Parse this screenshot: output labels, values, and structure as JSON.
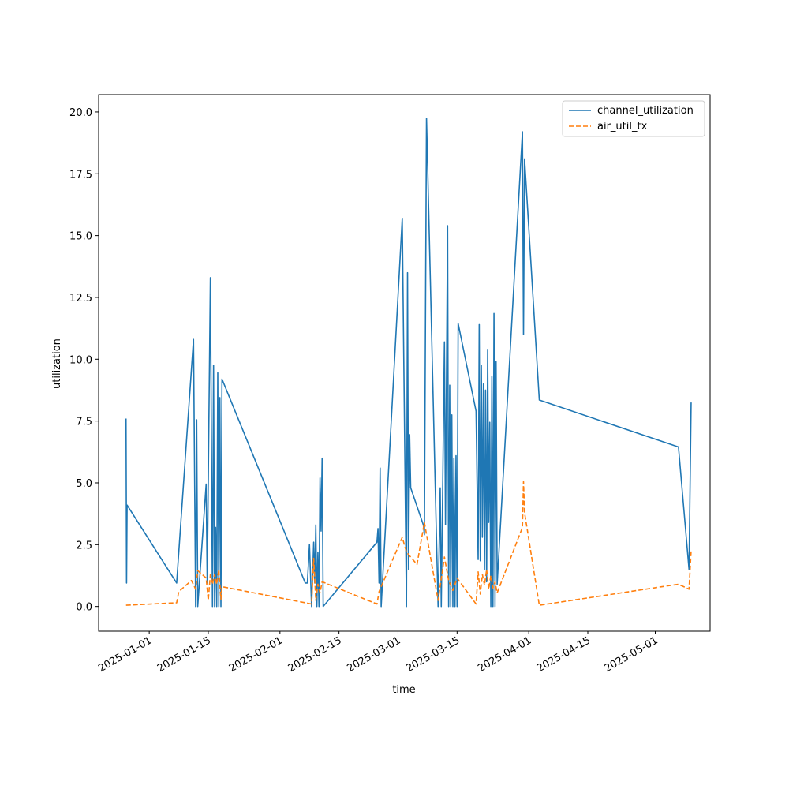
{
  "chart_data": {
    "type": "line",
    "title": "",
    "xlabel": "time",
    "ylabel": "utilization",
    "xlim": [
      "2024-12-20",
      "2025-05-14"
    ],
    "ylim": [
      -1.0,
      20.7
    ],
    "grid": false,
    "legend_position": "top-right",
    "x_ticks": [
      "2025-01-01",
      "2025-01-15",
      "2025-02-01",
      "2025-02-15",
      "2025-03-01",
      "2025-03-15",
      "2025-04-01",
      "2025-04-15",
      "2025-05-01"
    ],
    "y_ticks": [
      0.0,
      2.5,
      5.0,
      7.5,
      10.0,
      12.5,
      15.0,
      17.5,
      20.0
    ],
    "y_tick_labels": [
      "0.0",
      "2.5",
      "5.0",
      "7.5",
      "10.0",
      "12.5",
      "15.0",
      "17.5",
      "20.0"
    ],
    "series": [
      {
        "name": "channel_utilization",
        "color": "#1f77b4",
        "style": "solid",
        "points": [
          [
            "2024-12-26 12:00",
            7.6
          ],
          [
            "2024-12-26 15:00",
            0.95
          ],
          [
            "2024-12-26 18:00",
            4.1
          ],
          [
            "2025-01-07 12:00",
            0.95
          ],
          [
            "2025-01-11 12:00",
            10.8
          ],
          [
            "2025-01-12 00:00",
            0.0
          ],
          [
            "2025-01-12 06:00",
            7.55
          ],
          [
            "2025-01-12 12:00",
            0.0
          ],
          [
            "2025-01-14 12:00",
            4.95
          ],
          [
            "2025-01-14 18:00",
            0.95
          ],
          [
            "2025-01-15 12:00",
            13.3
          ],
          [
            "2025-01-16 00:00",
            0.0
          ],
          [
            "2025-01-16 06:00",
            9.75
          ],
          [
            "2025-01-16 12:00",
            0.0
          ],
          [
            "2025-01-16 18:00",
            3.2
          ],
          [
            "2025-01-17 00:00",
            0.0
          ],
          [
            "2025-01-17 06:00",
            9.45
          ],
          [
            "2025-01-17 12:00",
            0.0
          ],
          [
            "2025-01-17 18:00",
            8.45
          ],
          [
            "2025-01-18 00:00",
            0.0
          ],
          [
            "2025-01-18 06:00",
            9.2
          ],
          [
            "2025-02-07 00:00",
            0.95
          ],
          [
            "2025-02-07 12:00",
            0.95
          ],
          [
            "2025-02-08 00:00",
            2.5
          ],
          [
            "2025-02-08 12:00",
            0.0
          ],
          [
            "2025-02-09 00:00",
            2.6
          ],
          [
            "2025-02-09 06:00",
            0.95
          ],
          [
            "2025-02-09 12:00",
            3.3
          ],
          [
            "2025-02-09 18:00",
            0.0
          ],
          [
            "2025-02-10 00:00",
            2.2
          ],
          [
            "2025-02-10 06:00",
            0.0
          ],
          [
            "2025-02-10 12:00",
            5.2
          ],
          [
            "2025-02-10 18:00",
            3.05
          ],
          [
            "2025-02-11 00:00",
            6.0
          ],
          [
            "2025-02-11 06:00",
            0.0
          ],
          [
            "2025-02-24 00:00",
            2.6
          ],
          [
            "2025-02-24 06:00",
            3.15
          ],
          [
            "2025-02-24 12:00",
            0.95
          ],
          [
            "2025-02-24 18:00",
            5.6
          ],
          [
            "2025-02-25 00:00",
            0.0
          ],
          [
            "2025-03-02 00:00",
            15.7
          ],
          [
            "2025-03-03 00:00",
            0.0
          ],
          [
            "2025-03-03 06:00",
            13.5
          ],
          [
            "2025-03-03 12:00",
            1.5
          ],
          [
            "2025-03-03 18:00",
            6.95
          ],
          [
            "2025-03-04 00:00",
            4.8
          ],
          [
            "2025-03-07 00:00",
            3.3
          ],
          [
            "2025-03-07 06:00",
            2.9
          ],
          [
            "2025-03-07 18:00",
            19.75
          ],
          [
            "2025-03-10 12:00",
            0.0
          ],
          [
            "2025-03-11 00:00",
            4.8
          ],
          [
            "2025-03-11 06:00",
            0.0
          ],
          [
            "2025-03-12 00:00",
            10.7
          ],
          [
            "2025-03-12 06:00",
            3.3
          ],
          [
            "2025-03-12 18:00",
            15.4
          ],
          [
            "2025-03-13 00:00",
            0.0
          ],
          [
            "2025-03-13 06:00",
            8.95
          ],
          [
            "2025-03-13 12:00",
            0.0
          ],
          [
            "2025-03-13 18:00",
            7.75
          ],
          [
            "2025-03-14 00:00",
            0.0
          ],
          [
            "2025-03-14 06:00",
            6.0
          ],
          [
            "2025-03-14 12:00",
            0.0
          ],
          [
            "2025-03-14 18:00",
            6.1
          ],
          [
            "2025-03-15 00:00",
            0.0
          ],
          [
            "2025-03-15 06:00",
            11.45
          ],
          [
            "2025-03-19 12:00",
            7.9
          ],
          [
            "2025-03-20 00:00",
            1.9
          ],
          [
            "2025-03-20 06:00",
            11.4
          ],
          [
            "2025-03-20 12:00",
            1.85
          ],
          [
            "2025-03-20 18:00",
            9.75
          ],
          [
            "2025-03-21 00:00",
            2.8
          ],
          [
            "2025-03-21 06:00",
            9.0
          ],
          [
            "2025-03-21 12:00",
            1.5
          ],
          [
            "2025-03-21 18:00",
            8.75
          ],
          [
            "2025-03-22 00:00",
            1.0
          ],
          [
            "2025-03-22 06:00",
            10.4
          ],
          [
            "2025-03-22 12:00",
            3.4
          ],
          [
            "2025-03-22 18:00",
            7.45
          ],
          [
            "2025-03-23 00:00",
            0.0
          ],
          [
            "2025-03-23 06:00",
            9.3
          ],
          [
            "2025-03-23 12:00",
            0.0
          ],
          [
            "2025-03-23 18:00",
            11.85
          ],
          [
            "2025-03-24 00:00",
            0.0
          ],
          [
            "2025-03-24 06:00",
            9.9
          ],
          [
            "2025-03-24 12:00",
            0.9
          ],
          [
            "2025-03-30 12:00",
            19.2
          ],
          [
            "2025-03-30 18:00",
            11.0
          ],
          [
            "2025-03-31 00:00",
            18.1
          ],
          [
            "2025-04-03 12:00",
            8.35
          ],
          [
            "2025-05-06 12:00",
            6.45
          ],
          [
            "2025-05-09 00:00",
            1.5
          ],
          [
            "2025-05-09 12:00",
            8.25
          ]
        ]
      },
      {
        "name": "air_util_tx",
        "color": "#ff7f0e",
        "style": "dashed",
        "points": [
          [
            "2024-12-26 12:00",
            0.05
          ],
          [
            "2025-01-07 12:00",
            0.15
          ],
          [
            "2025-01-08 00:00",
            0.6
          ],
          [
            "2025-01-11 00:00",
            1.05
          ],
          [
            "2025-01-12 00:00",
            0.7
          ],
          [
            "2025-01-12 12:00",
            1.45
          ],
          [
            "2025-01-14 12:00",
            1.15
          ],
          [
            "2025-01-15 00:00",
            0.25
          ],
          [
            "2025-01-15 12:00",
            1.3
          ],
          [
            "2025-01-16 00:00",
            0.9
          ],
          [
            "2025-01-16 12:00",
            1.3
          ],
          [
            "2025-01-17 00:00",
            0.9
          ],
          [
            "2025-01-17 12:00",
            1.5
          ],
          [
            "2025-01-18 00:00",
            0.3
          ],
          [
            "2025-01-18 06:00",
            0.8
          ],
          [
            "2025-02-07 00:00",
            0.15
          ],
          [
            "2025-02-08 12:00",
            0.1
          ],
          [
            "2025-02-09 00:00",
            1.95
          ],
          [
            "2025-02-09 12:00",
            0.25
          ],
          [
            "2025-02-10 00:00",
            0.9
          ],
          [
            "2025-02-10 12:00",
            0.55
          ],
          [
            "2025-02-11 00:00",
            1.0
          ],
          [
            "2025-02-24 00:00",
            0.1
          ],
          [
            "2025-02-24 12:00",
            0.6
          ],
          [
            "2025-03-02 00:00",
            2.8
          ],
          [
            "2025-03-03 00:00",
            2.2
          ],
          [
            "2025-03-05 12:00",
            1.7
          ],
          [
            "2025-03-07 06:00",
            3.4
          ],
          [
            "2025-03-10 12:00",
            0.25
          ],
          [
            "2025-03-12 00:00",
            2.0
          ],
          [
            "2025-03-13 00:00",
            1.05
          ],
          [
            "2025-03-14 00:00",
            0.65
          ],
          [
            "2025-03-15 00:00",
            1.15
          ],
          [
            "2025-03-19 12:00",
            0.1
          ],
          [
            "2025-03-20 00:00",
            1.4
          ],
          [
            "2025-03-20 12:00",
            0.5
          ],
          [
            "2025-03-21 00:00",
            1.3
          ],
          [
            "2025-03-21 12:00",
            0.85
          ],
          [
            "2025-03-22 00:00",
            1.5
          ],
          [
            "2025-03-22 12:00",
            0.7
          ],
          [
            "2025-03-23 00:00",
            1.25
          ],
          [
            "2025-03-23 12:00",
            0.75
          ],
          [
            "2025-03-24 00:00",
            1.0
          ],
          [
            "2025-03-24 12:00",
            0.55
          ],
          [
            "2025-03-30 12:00",
            3.2
          ],
          [
            "2025-03-30 18:00",
            5.05
          ],
          [
            "2025-03-31 00:00",
            3.8
          ],
          [
            "2025-04-03 12:00",
            0.05
          ],
          [
            "2025-05-06 12:00",
            0.9
          ],
          [
            "2025-05-09 00:00",
            0.7
          ],
          [
            "2025-05-09 12:00",
            2.25
          ]
        ]
      }
    ]
  }
}
